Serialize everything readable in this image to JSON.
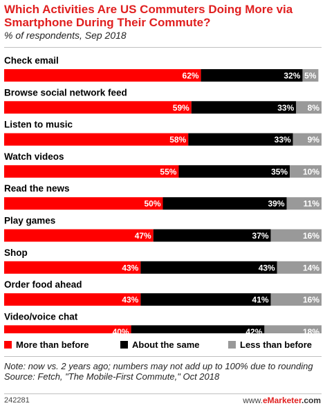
{
  "header": {
    "title": "Which Activities Are US Commuters Doing More via Smartphone During Their Commute?",
    "subtitle": "% of respondents, Sep 2018"
  },
  "colors": {
    "more": "#ff0000",
    "same": "#000000",
    "less": "#999999",
    "title": "#e01f1f"
  },
  "chart_data": {
    "type": "bar",
    "orientation": "horizontal",
    "stacked": true,
    "title": "Which Activities Are US Commuters Doing More via Smartphone During Their Commute?",
    "subtitle": "% of respondents, Sep 2018",
    "unit": "%",
    "xlim": [
      0,
      100
    ],
    "grid": false,
    "legend_position": "bottom",
    "categories": [
      "Check email",
      "Browse social network feed",
      "Listen to music",
      "Watch videos",
      "Read the news",
      "Play games",
      "Shop",
      "Order food ahead",
      "Video/voice chat"
    ],
    "series": [
      {
        "name": "More than before",
        "color": "#ff0000",
        "values": [
          62,
          59,
          58,
          55,
          50,
          47,
          43,
          43,
          40
        ]
      },
      {
        "name": "About the same",
        "color": "#000000",
        "values": [
          32,
          33,
          33,
          35,
          39,
          37,
          43,
          41,
          42
        ]
      },
      {
        "name": "Less than before",
        "color": "#999999",
        "values": [
          5,
          8,
          9,
          10,
          11,
          16,
          14,
          16,
          18
        ]
      }
    ]
  },
  "legend": [
    {
      "label": "More than before",
      "color": "#ff0000"
    },
    {
      "label": "About the same",
      "color": "#000000"
    },
    {
      "label": "Less than before",
      "color": "#999999"
    }
  ],
  "footer": {
    "note": "Note: now vs. 2 years ago; numbers may not add up to 100% due to rounding",
    "source": "Source: Fetch, \"The Mobile-First Commute,\" Oct 2018",
    "chart_id": "242281",
    "brand_prefix": "www.",
    "brand_name": "eMarketer",
    "brand_suffix": ".com"
  }
}
